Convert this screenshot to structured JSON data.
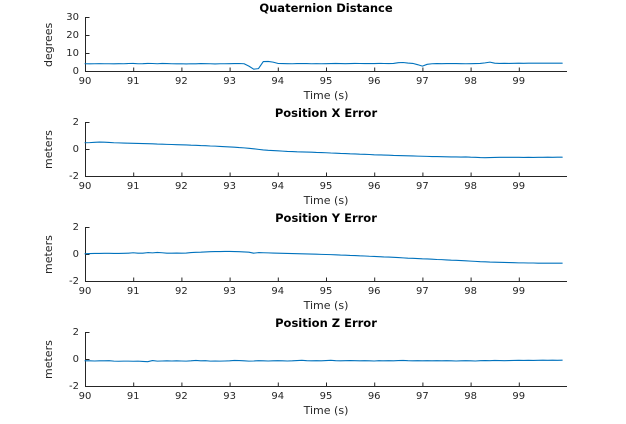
{
  "figure": {
    "background": "#ffffff"
  },
  "colors": {
    "line": "#0072BD",
    "axis": "#262626",
    "title": "#000000"
  },
  "chart_data": {
    "type": "line",
    "xlabel": "Time (s)",
    "xlim": [
      90,
      100
    ],
    "xticks": [
      90,
      91,
      92,
      93,
      94,
      95,
      96,
      97,
      98,
      99
    ],
    "grid": false,
    "legend": "none",
    "x": [
      90.0,
      90.1,
      90.2,
      90.3,
      90.4,
      90.5,
      90.6,
      90.7,
      90.8,
      90.9,
      91.0,
      91.1,
      91.2,
      91.3,
      91.4,
      91.5,
      91.6,
      91.7,
      91.8,
      91.9,
      92.0,
      92.1,
      92.2,
      92.3,
      92.4,
      92.5,
      92.6,
      92.7,
      92.8,
      92.9,
      93.0,
      93.1,
      93.2,
      93.3,
      93.4,
      93.5,
      93.6,
      93.7,
      93.8,
      93.9,
      94.0,
      94.1,
      94.2,
      94.3,
      94.4,
      94.5,
      94.6,
      94.7,
      94.8,
      94.9,
      95.0,
      95.1,
      95.2,
      95.3,
      95.4,
      95.5,
      95.6,
      95.7,
      95.8,
      95.9,
      96.0,
      96.1,
      96.2,
      96.3,
      96.4,
      96.5,
      96.6,
      96.7,
      96.8,
      96.9,
      97.0,
      97.1,
      97.2,
      97.3,
      97.4,
      97.5,
      97.6,
      97.7,
      97.8,
      97.9,
      98.0,
      98.1,
      98.2,
      98.3,
      98.4,
      98.5,
      98.6,
      98.7,
      98.8,
      98.9,
      99.0,
      99.1,
      99.2,
      99.3,
      99.4,
      99.5,
      99.6,
      99.7,
      99.8,
      99.9
    ],
    "subplots": [
      {
        "title": "Quaternion Distance",
        "ylabel": "degrees",
        "ylim": [
          0,
          30
        ],
        "yticks": [
          0,
          10,
          20,
          30
        ],
        "values": [
          4.3,
          4.25,
          4.3,
          4.35,
          4.3,
          4.3,
          4.25,
          4.35,
          4.3,
          4.45,
          4.5,
          4.3,
          4.35,
          4.5,
          4.45,
          4.3,
          4.5,
          4.4,
          4.3,
          4.25,
          4.3,
          4.2,
          4.3,
          4.25,
          4.4,
          4.35,
          4.3,
          4.2,
          4.3,
          4.3,
          4.35,
          4.4,
          4.45,
          4.3,
          3.0,
          1.3,
          1.6,
          5.5,
          5.6,
          5.2,
          4.5,
          4.4,
          4.35,
          4.3,
          4.4,
          4.45,
          4.4,
          4.3,
          4.35,
          4.3,
          4.35,
          4.4,
          4.5,
          4.4,
          4.35,
          4.4,
          4.5,
          4.45,
          4.4,
          4.45,
          4.4,
          4.5,
          4.45,
          4.4,
          4.5,
          4.9,
          5.0,
          4.7,
          4.5,
          3.8,
          3.0,
          4.0,
          4.3,
          4.4,
          4.35,
          4.4,
          4.45,
          4.4,
          4.35,
          4.3,
          4.35,
          4.4,
          4.5,
          4.8,
          5.2,
          4.6,
          4.5,
          4.55,
          4.5,
          4.55,
          4.6,
          4.55,
          4.6,
          4.65,
          4.6,
          4.65,
          4.6,
          4.65,
          4.6,
          4.6
        ]
      },
      {
        "title": "Position X Error",
        "ylabel": "meters",
        "ylim": [
          -2,
          2
        ],
        "yticks": [
          -2,
          0,
          2
        ],
        "values": [
          0.5,
          0.51,
          0.53,
          0.55,
          0.54,
          0.52,
          0.5,
          0.49,
          0.48,
          0.47,
          0.46,
          0.45,
          0.44,
          0.43,
          0.42,
          0.4,
          0.39,
          0.38,
          0.37,
          0.36,
          0.35,
          0.34,
          0.32,
          0.31,
          0.29,
          0.28,
          0.26,
          0.25,
          0.23,
          0.21,
          0.19,
          0.17,
          0.14,
          0.12,
          0.09,
          0.05,
          0.01,
          -0.03,
          -0.06,
          -0.08,
          -0.1,
          -0.12,
          -0.14,
          -0.15,
          -0.17,
          -0.18,
          -0.19,
          -0.2,
          -0.22,
          -0.23,
          -0.24,
          -0.26,
          -0.27,
          -0.29,
          -0.3,
          -0.32,
          -0.33,
          -0.35,
          -0.36,
          -0.37,
          -0.39,
          -0.4,
          -0.41,
          -0.42,
          -0.44,
          -0.45,
          -0.46,
          -0.47,
          -0.48,
          -0.49,
          -0.5,
          -0.51,
          -0.52,
          -0.52,
          -0.53,
          -0.54,
          -0.55,
          -0.55,
          -0.56,
          -0.55,
          -0.57,
          -0.58,
          -0.6,
          -0.61,
          -0.6,
          -0.59,
          -0.58,
          -0.58,
          -0.58,
          -0.58,
          -0.58,
          -0.59,
          -0.58,
          -0.59,
          -0.58,
          -0.58,
          -0.57,
          -0.58,
          -0.57,
          -0.57
        ]
      },
      {
        "title": "Position Y Error",
        "ylabel": "meters",
        "ylim": [
          -2,
          2
        ],
        "yticks": [
          -2,
          0,
          2
        ],
        "values": [
          0.05,
          0.07,
          0.08,
          0.08,
          0.09,
          0.09,
          0.08,
          0.08,
          0.09,
          0.1,
          0.13,
          0.1,
          0.1,
          0.14,
          0.12,
          0.15,
          0.13,
          0.1,
          0.1,
          0.11,
          0.1,
          0.11,
          0.14,
          0.16,
          0.17,
          0.19,
          0.21,
          0.22,
          0.22,
          0.23,
          0.23,
          0.22,
          0.21,
          0.19,
          0.17,
          0.1,
          0.14,
          0.13,
          0.12,
          0.11,
          0.1,
          0.09,
          0.08,
          0.07,
          0.06,
          0.05,
          0.04,
          0.03,
          0.02,
          0.01,
          0.0,
          -0.01,
          -0.02,
          -0.04,
          -0.05,
          -0.07,
          -0.08,
          -0.1,
          -0.11,
          -0.13,
          -0.14,
          -0.16,
          -0.18,
          -0.19,
          -0.21,
          -0.23,
          -0.25,
          -0.27,
          -0.28,
          -0.3,
          -0.32,
          -0.33,
          -0.35,
          -0.37,
          -0.38,
          -0.4,
          -0.42,
          -0.43,
          -0.45,
          -0.47,
          -0.49,
          -0.51,
          -0.53,
          -0.54,
          -0.56,
          -0.57,
          -0.58,
          -0.59,
          -0.6,
          -0.61,
          -0.62,
          -0.62,
          -0.63,
          -0.63,
          -0.64,
          -0.64,
          -0.64,
          -0.64,
          -0.64,
          -0.64
        ]
      },
      {
        "title": "Position Z Error",
        "ylabel": "meters",
        "ylim": [
          -2,
          2
        ],
        "yticks": [
          -2,
          0,
          2
        ],
        "values": [
          -0.1,
          -0.1,
          -0.11,
          -0.1,
          -0.1,
          -0.09,
          -0.12,
          -0.13,
          -0.12,
          -0.12,
          -0.13,
          -0.12,
          -0.14,
          -0.16,
          -0.08,
          -0.12,
          -0.11,
          -0.1,
          -0.11,
          -0.1,
          -0.11,
          -0.12,
          -0.1,
          -0.07,
          -0.1,
          -0.09,
          -0.12,
          -0.11,
          -0.12,
          -0.11,
          -0.1,
          -0.07,
          -0.08,
          -0.1,
          -0.12,
          -0.11,
          -0.09,
          -0.1,
          -0.11,
          -0.1,
          -0.09,
          -0.1,
          -0.11,
          -0.1,
          -0.08,
          -0.06,
          -0.09,
          -0.1,
          -0.09,
          -0.1,
          -0.08,
          -0.06,
          -0.09,
          -0.1,
          -0.09,
          -0.08,
          -0.09,
          -0.1,
          -0.09,
          -0.1,
          -0.11,
          -0.09,
          -0.1,
          -0.09,
          -0.1,
          -0.08,
          -0.07,
          -0.09,
          -0.1,
          -0.09,
          -0.1,
          -0.09,
          -0.1,
          -0.09,
          -0.1,
          -0.09,
          -0.1,
          -0.11,
          -0.1,
          -0.09,
          -0.1,
          -0.11,
          -0.09,
          -0.08,
          -0.09,
          -0.07,
          -0.08,
          -0.09,
          -0.08,
          -0.07,
          -0.06,
          -0.07,
          -0.06,
          -0.07,
          -0.06,
          -0.05,
          -0.06,
          -0.05,
          -0.06,
          -0.05
        ]
      }
    ]
  }
}
